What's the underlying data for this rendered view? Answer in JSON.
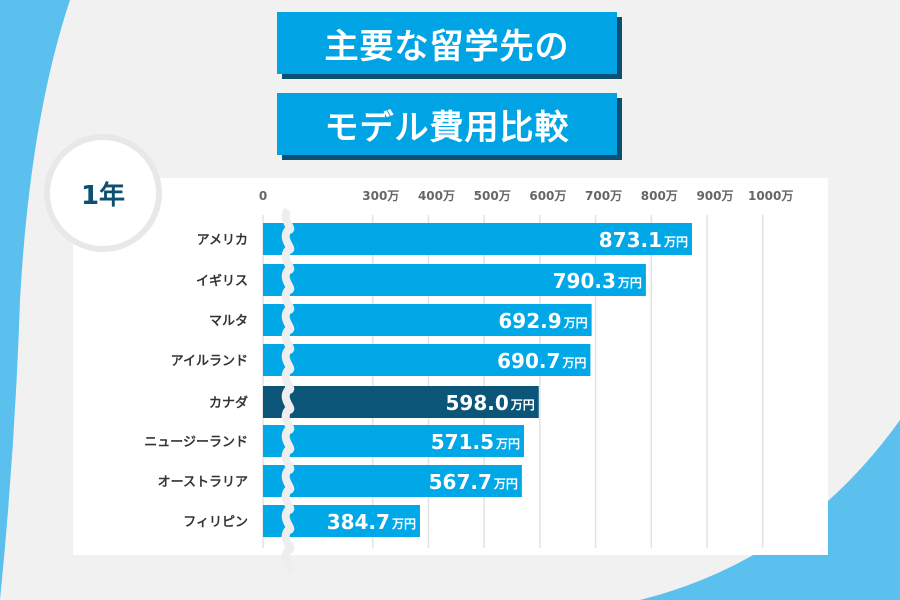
{
  "title_line1": "主要な留学先の",
  "title_line2": "モデル費用比較",
  "period_badge": "1年",
  "colors": {
    "bar": "#00a8e8",
    "highlight": "#0a5578",
    "title_bg": "#00a4e4",
    "accent_arc": "#5bc0ee"
  },
  "chart_data": {
    "type": "bar",
    "orientation": "horizontal",
    "axis_break": true,
    "x_ticks": [
      "0",
      "300万",
      "400万",
      "500万",
      "600万",
      "700万",
      "800万",
      "900万",
      "1000万"
    ],
    "x_tick_values": [
      0,
      300,
      400,
      500,
      600,
      700,
      800,
      900,
      1000
    ],
    "unit": "万円",
    "categories": [
      "アメリカ",
      "イギリス",
      "マルタ",
      "アイルランド",
      "カナダ",
      "ニュージーランド",
      "オーストラリア",
      "フィリピン"
    ],
    "values": [
      873.1,
      790.3,
      692.9,
      690.7,
      598.0,
      571.5,
      567.7,
      384.7
    ],
    "value_labels": [
      "873.1",
      "790.3",
      "692.9",
      "690.7",
      "598.0",
      "571.5",
      "567.7",
      "384.7"
    ],
    "highlighted": "カナダ",
    "grid": true
  }
}
